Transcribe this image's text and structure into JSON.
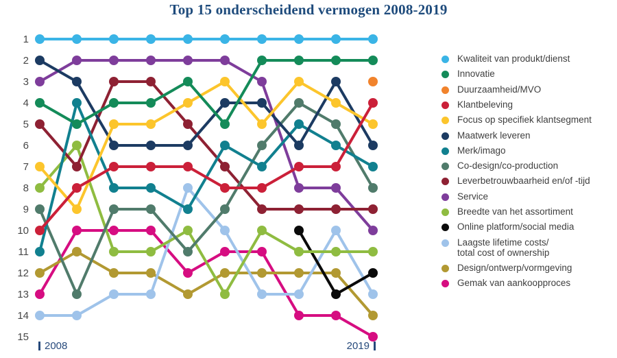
{
  "chart_data": {
    "type": "line",
    "subtype": "bump-ranking",
    "title": "Top 15 onderscheidend vermogen 2008-2019",
    "x_axis": {
      "start_label": "2008",
      "end_label": "2019",
      "num_points": 10
    },
    "y_axis": {
      "kind": "rank",
      "inverted": true,
      "rank_labels": [
        "1",
        "2",
        "3",
        "4",
        "5",
        "6",
        "7",
        "8",
        "9",
        "10",
        "11",
        "12",
        "13",
        "14",
        "15"
      ]
    },
    "legend_position": "right",
    "grid": false,
    "series": [
      {
        "name": "Kwaliteit van produkt/dienst",
        "color": "#3ab4e6",
        "ranks": [
          1,
          1,
          1,
          1,
          1,
          1,
          1,
          1,
          1,
          1
        ]
      },
      {
        "name": "Innovatie",
        "color": "#148b59",
        "ranks": [
          4,
          5,
          4,
          4,
          3,
          5,
          2,
          2,
          2,
          2
        ]
      },
      {
        "name": "Duurzaamheid/MVO",
        "color": "#f1832c",
        "ranks": [
          null,
          null,
          null,
          null,
          null,
          null,
          null,
          null,
          null,
          3
        ]
      },
      {
        "name": "Klantbeleving",
        "color": "#cb2039",
        "ranks": [
          10,
          8,
          7,
          7,
          7,
          8,
          8,
          7,
          7,
          4
        ]
      },
      {
        "name": "Focus op specifiek klantsegment",
        "color": "#fcc52c",
        "ranks": [
          7,
          9,
          5,
          5,
          4,
          3,
          5,
          3,
          4,
          5
        ]
      },
      {
        "name": "Maatwerk leveren",
        "color": "#1c3b62",
        "ranks": [
          2,
          3,
          6,
          6,
          6,
          4,
          4,
          6,
          3,
          6
        ]
      },
      {
        "name": "Merk/imago",
        "color": "#11808f",
        "ranks": [
          11,
          4,
          8,
          8,
          9,
          6,
          7,
          5,
          6,
          7
        ]
      },
      {
        "name": "Co-design/co-production",
        "color": "#507b6b",
        "ranks": [
          9,
          13,
          9,
          9,
          11,
          9,
          6,
          4,
          5,
          8
        ]
      },
      {
        "name": "Leverbetrouwbaarheid en/of -tijd",
        "color": "#8e2133",
        "ranks": [
          5,
          7,
          3,
          3,
          5,
          7,
          9,
          9,
          9,
          9
        ]
      },
      {
        "name": "Service",
        "color": "#7e3d9b",
        "ranks": [
          3,
          2,
          2,
          2,
          2,
          2,
          3,
          8,
          8,
          10
        ]
      },
      {
        "name": "Breedte van het assortiment",
        "color": "#8fbc41",
        "ranks": [
          8,
          6,
          11,
          11,
          10,
          13,
          10,
          11,
          11,
          11
        ]
      },
      {
        "name": "Online platform/social media",
        "color": "#0a0a0a",
        "ranks": [
          null,
          null,
          null,
          null,
          null,
          null,
          null,
          10,
          13,
          12
        ]
      },
      {
        "name": "Laagste lifetime costs/",
        "name_line2": "total cost of ownership",
        "color": "#9fc3ea",
        "ranks": [
          14,
          14,
          13,
          13,
          8,
          10,
          13,
          13,
          10,
          13
        ]
      },
      {
        "name": "Design/ontwerp/vormgeving",
        "color": "#b29932",
        "ranks": [
          12,
          11,
          12,
          12,
          13,
          12,
          12,
          12,
          12,
          14
        ]
      },
      {
        "name": "Gemak van aankoopproces",
        "color": "#d60d81",
        "ranks": [
          13,
          10,
          10,
          10,
          12,
          11,
          11,
          14,
          14,
          15
        ]
      }
    ]
  }
}
